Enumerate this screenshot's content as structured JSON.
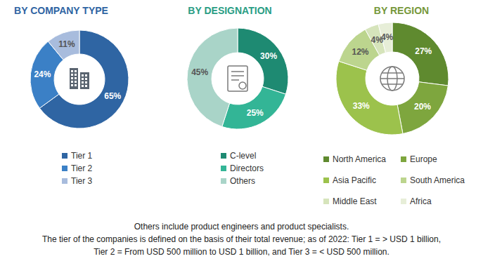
{
  "chart_data": [
    {
      "type": "pie",
      "title": "BY COMPANY TYPE",
      "categories": [
        "Tier 1",
        "Tier 2",
        "Tier 3"
      ],
      "values": [
        65,
        24,
        11
      ],
      "value_labels": [
        "65%",
        "24%",
        "11%"
      ],
      "colors": [
        "#2f65a3",
        "#3b80c6",
        "#a8bcdd"
      ],
      "data_labels": true
    },
    {
      "type": "pie",
      "title": "BY DESIGNATION",
      "categories": [
        "C-level",
        "Directors",
        "Others"
      ],
      "values": [
        30,
        25,
        45
      ],
      "value_labels": [
        "30%",
        "25%",
        "45%"
      ],
      "colors": [
        "#1e8a72",
        "#33b596",
        "#a9d4c8"
      ],
      "data_labels": true
    },
    {
      "type": "pie",
      "title": "BY REGION",
      "categories": [
        "North America",
        "Europe",
        "Asia Pacific",
        "South America",
        "Middle East",
        "Africa"
      ],
      "values": [
        27,
        20,
        33,
        12,
        4,
        4
      ],
      "value_labels": [
        "27%",
        "20%",
        "33%",
        "12%",
        "4%",
        "4%"
      ],
      "colors": [
        "#5f8a2f",
        "#7ea63e",
        "#9cc24c",
        "#bcd58e",
        "#d6e4bb",
        "#e7eed8"
      ],
      "data_labels": true
    }
  ],
  "footnotes": [
    "Others include product engineers and product specialists.",
    "The tier of the companies is defined on the basis of their total revenue; as of 2022: Tier 1 = > USD 1 billion,",
    "Tier 2 = From USD 500 million to USD 1 billion, and Tier 3 = < USD 500 million."
  ]
}
